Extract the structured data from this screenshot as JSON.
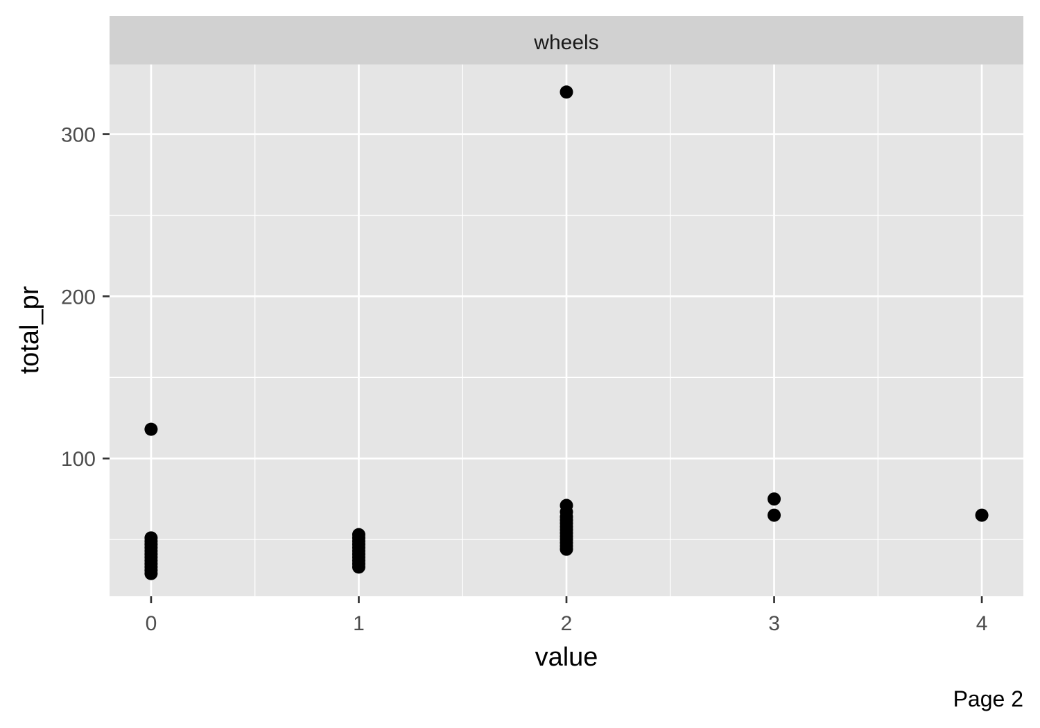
{
  "chart_data": {
    "type": "scatter",
    "facet_label": "wheels",
    "xlabel": "value",
    "ylabel": "total_pr",
    "xlim": [
      -0.2,
      4.2
    ],
    "ylim": [
      15,
      343
    ],
    "x_ticks": [
      0,
      1,
      2,
      3,
      4
    ],
    "x_tick_labels": [
      "0",
      "1",
      "2",
      "3",
      "4"
    ],
    "x_minor_grid": [
      0.5,
      1.5,
      2.5,
      3.5
    ],
    "y_ticks": [
      100,
      200,
      300
    ],
    "y_tick_labels": [
      "100",
      "200",
      "300"
    ],
    "y_minor_grid": [
      50,
      150,
      250
    ],
    "grid": true,
    "colors": {
      "panel": "#e5e5e5",
      "strip": "#d1d1d1",
      "grid": "#ffffff",
      "point": "#000000",
      "axis_text": "#4d4d4d"
    },
    "points": [
      {
        "x": 0,
        "y": 118
      },
      {
        "x": 0,
        "y": 51
      },
      {
        "x": 0,
        "y": 49
      },
      {
        "x": 0,
        "y": 47
      },
      {
        "x": 0,
        "y": 45
      },
      {
        "x": 0,
        "y": 43
      },
      {
        "x": 0,
        "y": 41
      },
      {
        "x": 0,
        "y": 39
      },
      {
        "x": 0,
        "y": 37
      },
      {
        "x": 0,
        "y": 35
      },
      {
        "x": 0,
        "y": 33
      },
      {
        "x": 0,
        "y": 31
      },
      {
        "x": 0,
        "y": 29
      },
      {
        "x": 1,
        "y": 53
      },
      {
        "x": 1,
        "y": 51
      },
      {
        "x": 1,
        "y": 49
      },
      {
        "x": 1,
        "y": 47
      },
      {
        "x": 1,
        "y": 45
      },
      {
        "x": 1,
        "y": 43
      },
      {
        "x": 1,
        "y": 41
      },
      {
        "x": 1,
        "y": 39
      },
      {
        "x": 1,
        "y": 37
      },
      {
        "x": 1,
        "y": 35
      },
      {
        "x": 1,
        "y": 33
      },
      {
        "x": 2,
        "y": 326
      },
      {
        "x": 2,
        "y": 71
      },
      {
        "x": 2,
        "y": 67
      },
      {
        "x": 2,
        "y": 64
      },
      {
        "x": 2,
        "y": 62
      },
      {
        "x": 2,
        "y": 60
      },
      {
        "x": 2,
        "y": 58
      },
      {
        "x": 2,
        "y": 56
      },
      {
        "x": 2,
        "y": 54
      },
      {
        "x": 2,
        "y": 52
      },
      {
        "x": 2,
        "y": 50
      },
      {
        "x": 2,
        "y": 48
      },
      {
        "x": 2,
        "y": 46
      },
      {
        "x": 2,
        "y": 44
      },
      {
        "x": 3,
        "y": 75
      },
      {
        "x": 3,
        "y": 65
      },
      {
        "x": 4,
        "y": 65
      }
    ]
  },
  "caption": "Page 2"
}
